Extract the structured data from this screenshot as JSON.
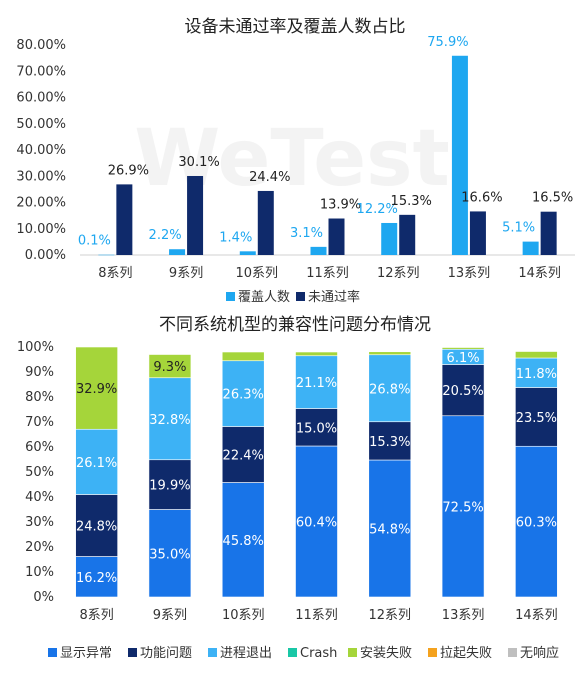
{
  "watermark": "WeTest",
  "colors": {
    "coverage": "#1EA7F0",
    "fail": "#0F2A6B",
    "display": "#1874E8",
    "function": "#0F2A6B",
    "exit": "#3DB2F5",
    "crash": "#19C7A6",
    "install": "#A5D53A",
    "launch": "#F4A21E",
    "noresponse": "#BFBFBF"
  },
  "chart_data": [
    {
      "type": "bar",
      "title": "设备未通过率及覆盖人数占比",
      "categories": [
        "8系列",
        "9系列",
        "10系列",
        "11系列",
        "12系列",
        "13系列",
        "14系列"
      ],
      "ylim": [
        0,
        80
      ],
      "yticks": [
        "0.00%",
        "10.00%",
        "20.00%",
        "30.00%",
        "40.00%",
        "50.00%",
        "60.00%",
        "70.00%",
        "80.00%"
      ],
      "series": [
        {
          "name": "覆盖人数",
          "color_key": "coverage",
          "values": [
            0.1,
            2.2,
            1.4,
            3.1,
            12.2,
            75.9,
            5.1
          ],
          "labels": [
            "0.1%",
            "2.2%",
            "1.4%",
            "3.1%",
            "12.2%",
            "75.9%",
            "5.1%"
          ]
        },
        {
          "name": "未通过率",
          "color_key": "fail",
          "values": [
            26.9,
            30.1,
            24.4,
            13.9,
            15.3,
            16.6,
            16.5
          ],
          "labels": [
            "26.9%",
            "30.1%",
            "24.4%",
            "13.9%",
            "15.3%",
            "16.6%",
            "16.5%"
          ]
        }
      ],
      "legend_position": "bottom"
    },
    {
      "type": "bar",
      "stacked": true,
      "title": "不同系统机型的兼容性问题分布情况",
      "categories": [
        "8系列",
        "9系列",
        "10系列",
        "11系列",
        "12系列",
        "13系列",
        "14系列"
      ],
      "ylim": [
        0,
        100
      ],
      "yticks": [
        "0%",
        "10%",
        "20%",
        "30%",
        "40%",
        "50%",
        "60%",
        "70%",
        "80%",
        "90%",
        "100%"
      ],
      "series": [
        {
          "name": "显示异常",
          "color_key": "display",
          "values": [
            16.2,
            35.0,
            45.8,
            60.4,
            54.8,
            72.5,
            60.3
          ],
          "labels": [
            "16.2%",
            "35.0%",
            "45.8%",
            "60.4%",
            "54.8%",
            "72.5%",
            "60.3%"
          ]
        },
        {
          "name": "功能问题",
          "color_key": "function",
          "values": [
            24.8,
            19.9,
            22.4,
            15.0,
            15.3,
            20.5,
            23.5
          ],
          "labels": [
            "24.8%",
            "19.9%",
            "22.4%",
            "15.0%",
            "15.3%",
            "20.5%",
            "23.5%"
          ]
        },
        {
          "name": "进程退出",
          "color_key": "exit",
          "values": [
            26.1,
            32.8,
            26.3,
            21.1,
            26.8,
            6.1,
            11.8
          ],
          "labels": [
            "26.1%",
            "32.8%",
            "26.3%",
            "21.1%",
            "26.8%",
            "6.1%",
            "11.8%"
          ]
        },
        {
          "name": "Crash",
          "color_key": "crash",
          "values": [
            0,
            0,
            0,
            0,
            0,
            0,
            0
          ],
          "labels": [
            "",
            "",
            "",
            "",
            "",
            "",
            ""
          ]
        },
        {
          "name": "安装失败",
          "color_key": "install",
          "values": [
            32.9,
            9.3,
            3.5,
            1.5,
            1.2,
            0.7,
            2.6
          ],
          "labels": [
            "32.9%",
            "9.3%",
            "",
            "",
            "",
            "",
            ""
          ]
        },
        {
          "name": "拉起失败",
          "color_key": "launch",
          "values": [
            0,
            0,
            0,
            0,
            0,
            0,
            0
          ],
          "labels": [
            "",
            "",
            "",
            "",
            "",
            "",
            ""
          ]
        },
        {
          "name": "无响应",
          "color_key": "noresponse",
          "values": [
            0,
            0,
            0,
            0,
            0,
            0,
            0
          ],
          "labels": [
            "",
            "",
            "",
            "",
            "",
            "",
            ""
          ]
        }
      ],
      "legend_position": "bottom"
    }
  ]
}
